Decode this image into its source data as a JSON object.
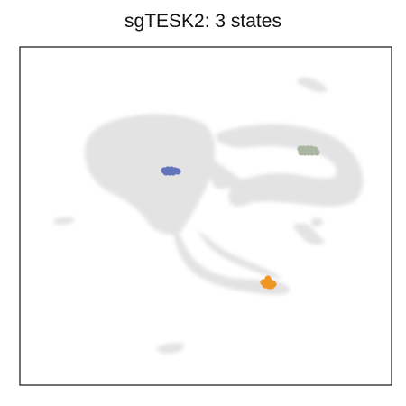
{
  "chart_data": {
    "type": "scatter",
    "title": "sgTESK2: 3 states",
    "xlabel": "",
    "ylabel": "",
    "ticks_shown": false,
    "grid": false,
    "legend": "none",
    "background_color": "#e3e3e3",
    "series": [
      {
        "color": "#6474bd",
        "points": [
          [
            182,
            189
          ],
          [
            186,
            188
          ],
          [
            190,
            188
          ],
          [
            194,
            189
          ],
          [
            197,
            190
          ],
          [
            184,
            191
          ],
          [
            188,
            191
          ],
          [
            192,
            191
          ]
        ]
      },
      {
        "color": "#aab5a2",
        "points": [
          [
            333,
            165
          ],
          [
            337,
            165
          ],
          [
            341,
            165
          ],
          [
            345,
            165
          ],
          [
            349,
            166
          ],
          [
            334,
            169
          ],
          [
            338,
            169
          ],
          [
            342,
            169
          ],
          [
            346,
            169
          ],
          [
            351,
            169
          ]
        ]
      },
      {
        "color": "#ef9524",
        "points": [
          [
            292,
            313
          ],
          [
            296,
            312
          ],
          [
            300,
            313
          ],
          [
            303,
            315
          ],
          [
            294,
            316
          ],
          [
            298,
            317
          ],
          [
            301,
            317
          ],
          [
            297,
            309
          ]
        ]
      }
    ]
  }
}
